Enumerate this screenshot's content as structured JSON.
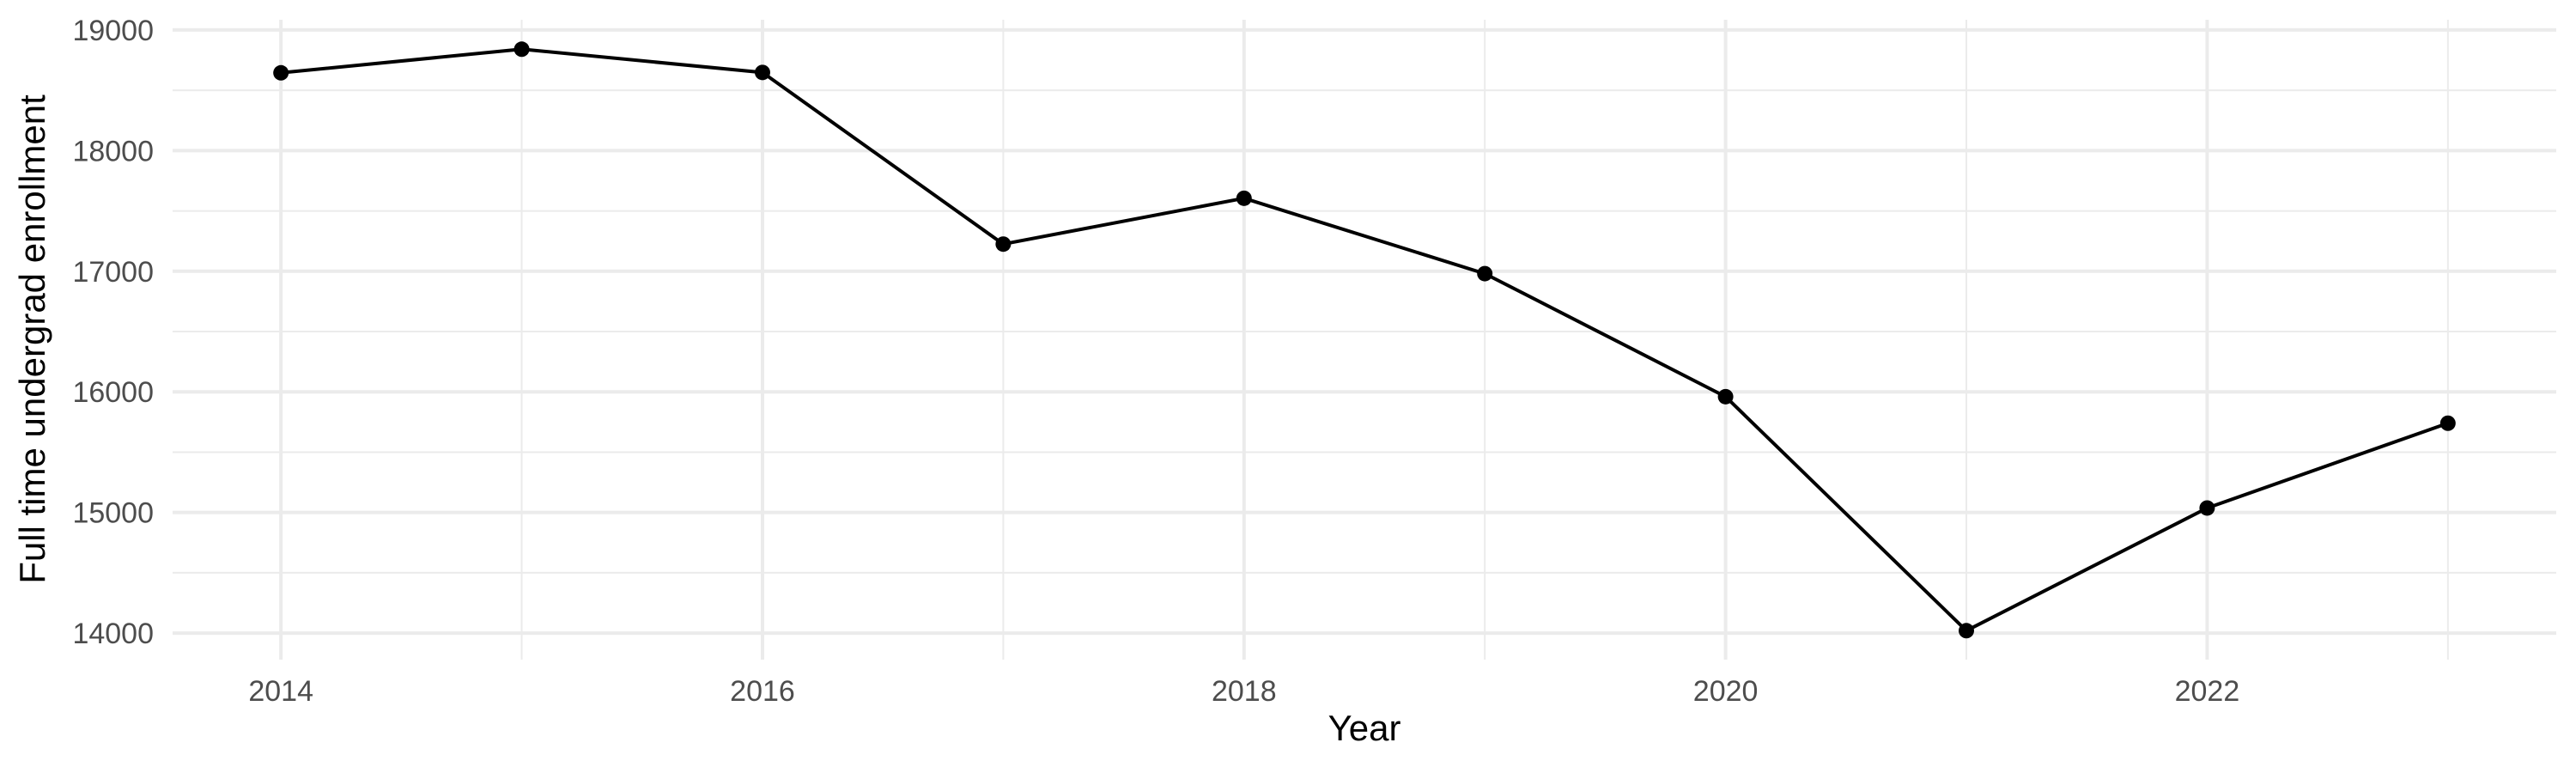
{
  "chart_data": {
    "type": "line",
    "title": "",
    "xlabel": "Year",
    "ylabel": "Full time undergrad enrollment",
    "x": [
      2014,
      2015,
      2016,
      2017,
      2018,
      2019,
      2020,
      2021,
      2022,
      2023
    ],
    "series": [
      {
        "values": [
          18645,
          18841,
          18648,
          17225,
          17605,
          16980,
          15960,
          14020,
          15037,
          15740
        ]
      }
    ],
    "xlim": [
      2013.55,
      2023.45
    ],
    "ylim": [
      13780,
      19085
    ],
    "x_ticks": [
      "2014",
      "2016",
      "2018",
      "2020",
      "2022"
    ],
    "x_tick_values": [
      2014,
      2016,
      2018,
      2020,
      2022
    ],
    "y_ticks": [
      "14000",
      "15000",
      "16000",
      "17000",
      "18000",
      "19000"
    ],
    "y_tick_values": [
      14000,
      15000,
      16000,
      17000,
      18000,
      19000
    ],
    "grid": true,
    "markers": true,
    "legend": "none",
    "colors": {
      "line": "#000000",
      "grid": "#ebebeb",
      "tick_text": "#4d4d4d"
    }
  }
}
